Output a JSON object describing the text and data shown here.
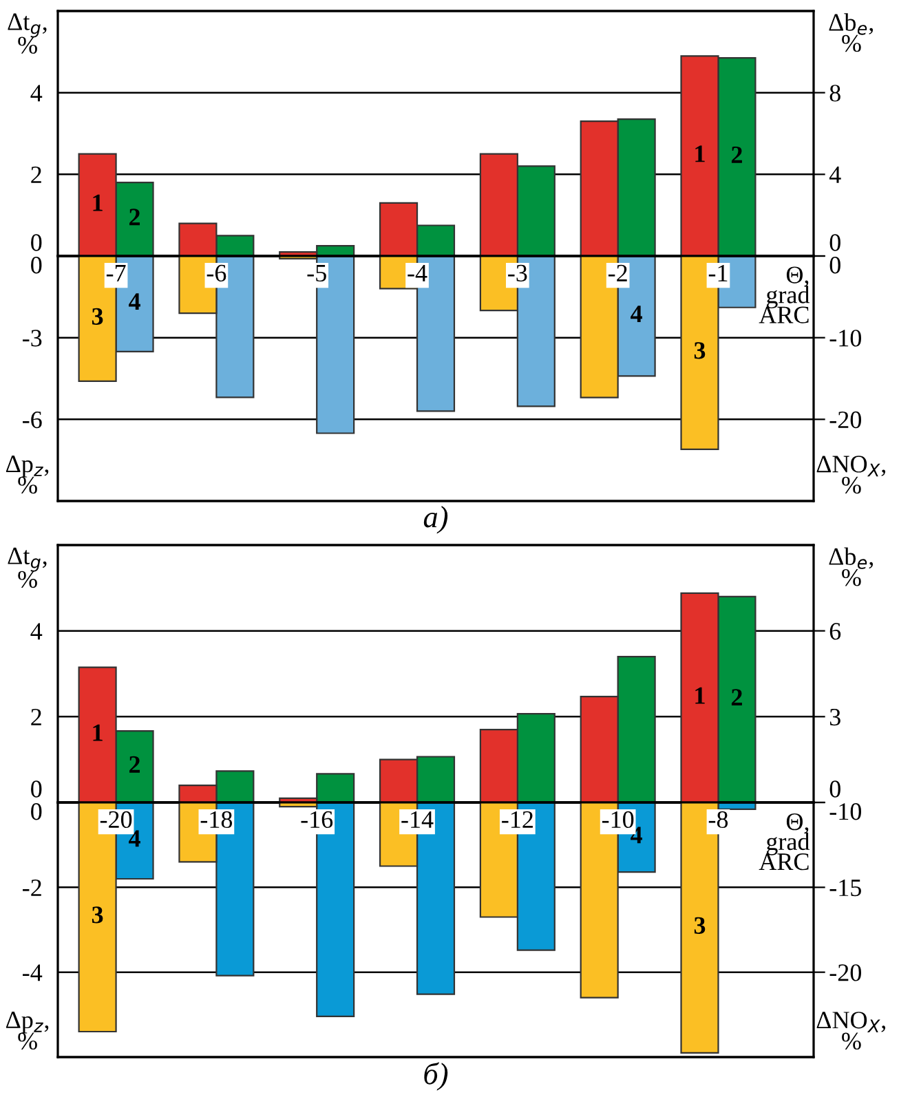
{
  "chart_data": [
    {
      "type": "bar",
      "categories": [
        "-7",
        "-6",
        "-5",
        "-4",
        "-3",
        "-2",
        "-1"
      ],
      "ylabel": "Δt$_{g}$,\n%",
      "y2label": "Δb$_{e}$,\n%",
      "ylim": [
        0,
        6
      ],
      "yticks": [
        0,
        2,
        4
      ],
      "y2lim": [
        0,
        12
      ],
      "y2ticks": [
        0,
        4,
        8
      ],
      "grid": true,
      "tick_labels": "y",
      "series": [
        {
          "name": "1",
          "color": "#e2312b",
          "values": [
            2.5,
            0.8,
            0.1,
            1.3,
            2.5,
            3.3,
            4.9
          ]
        },
        {
          "name": "2",
          "color": "#00923f",
          "axis": "y2",
          "values": [
            3.6,
            1.0,
            0.5,
            1.5,
            4.4,
            6.7,
            9.7
          ]
        }
      ]
    },
    {
      "type": "bar",
      "categories": [
        "-7",
        "-6",
        "-5",
        "-4",
        "-3",
        "-2",
        "-1"
      ],
      "xlabel": "Θ,\ngrad\nARC",
      "ylabel": "Δp$_{z}$,\n%",
      "y2label": "ΔNO$_{X}$,\n%",
      "ylim": [
        -9,
        0
      ],
      "yticks": [
        0,
        -3,
        -6
      ],
      "y2lim": [
        -30,
        0
      ],
      "y2ticks": [
        0,
        -10,
        -20
      ],
      "grid": true,
      "annotations": [
        "a)"
      ],
      "series": [
        {
          "name": "3",
          "color": "#fbbf24",
          "values": [
            -4.6,
            -2.1,
            -0.1,
            -1.2,
            -2.0,
            -5.2,
            -7.1
          ]
        },
        {
          "name": "4",
          "color": "#6cb0dc",
          "axis": "y2",
          "values": [
            -11.7,
            -17.3,
            -21.7,
            -19.0,
            -18.4,
            -14.7,
            -6.3
          ]
        }
      ]
    },
    {
      "type": "bar",
      "categories": [
        "-20",
        "-18",
        "-16",
        "-14",
        "-12",
        "-10",
        "-8"
      ],
      "ylabel": "Δt$_{g}$,\n%",
      "y2label": "Δb$_{e}$,\n%",
      "ylim": [
        0,
        6
      ],
      "yticks": [
        0,
        2,
        4
      ],
      "y2lim": [
        0,
        9
      ],
      "y2ticks": [
        0,
        3,
        6
      ],
      "grid": true,
      "tick_labels": "y",
      "series": [
        {
          "name": "1",
          "color": "#e2312b",
          "values": [
            3.15,
            0.4,
            0.1,
            1.0,
            1.7,
            2.47,
            4.88
          ]
        },
        {
          "name": "2",
          "color": "#00923f",
          "axis": "y2",
          "values": [
            2.5,
            1.1,
            1.0,
            1.6,
            3.1,
            5.1,
            7.2
          ]
        }
      ]
    },
    {
      "type": "bar",
      "categories": [
        "-20",
        "-18",
        "-16",
        "-14",
        "-12",
        "-10",
        "-8"
      ],
      "xlabel": "Θ,\ngrad\nARC",
      "ylabel": "Δp$_{z}$,\n%",
      "y2label": "ΔNO$_{X}$,\n%",
      "ylim": [
        -6,
        0
      ],
      "yticks": [
        0,
        -2,
        -4
      ],
      "y2lim": [
        -25,
        -10
      ],
      "y2ticks": [
        -10,
        -15,
        -20
      ],
      "grid": true,
      "annotations": [
        "б)"
      ],
      "series": [
        {
          "name": "3",
          "color": "#fbbf24",
          "values": [
            -5.4,
            -1.4,
            -0.1,
            -1.5,
            -2.7,
            -4.6,
            -5.9
          ]
        },
        {
          "name": "4",
          "color": "#0a9ad6",
          "axis": "y2",
          "values": [
            -14.5,
            -20.2,
            -22.6,
            -21.3,
            -18.7,
            -14.1,
            -10.4
          ]
        }
      ]
    }
  ]
}
